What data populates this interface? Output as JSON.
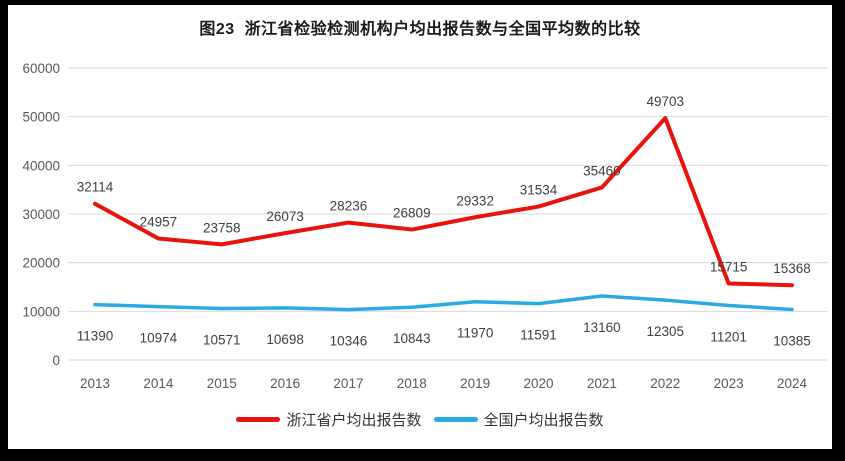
{
  "title": "图23  浙江省检验检测机构户均出报告数与全国平均数的比较",
  "frame": {
    "border_color": "#000000",
    "background": "#ffffff"
  },
  "chart_data": {
    "type": "line",
    "title": "图23  浙江省检验检测机构户均出报告数与全国平均数的比较",
    "categories": [
      "2013",
      "2014",
      "2015",
      "2016",
      "2017",
      "2018",
      "2019",
      "2020",
      "2021",
      "2022",
      "2023",
      "2024"
    ],
    "series": [
      {
        "name": "浙江省户均出报告数",
        "color": "#e8130c",
        "values": [
          32114,
          24957,
          23758,
          26073,
          28236,
          26809,
          29332,
          31534,
          35460,
          49703,
          15715,
          15368
        ]
      },
      {
        "name": "全国户均出报告数",
        "color": "#29abe2",
        "values": [
          11390,
          10974,
          10571,
          10698,
          10346,
          10843,
          11970,
          11591,
          13160,
          12305,
          11201,
          10385
        ]
      }
    ],
    "xlabel": "",
    "ylabel": "",
    "ylim": [
      0,
      60000
    ],
    "ytick_step": 10000,
    "yticks": [
      "0",
      "10000",
      "20000",
      "30000",
      "40000",
      "50000",
      "60000"
    ],
    "grid": "horizontal",
    "legend_position": "bottom",
    "gridline_color": "#d9d9d9",
    "axis_label_color": "#595959",
    "data_label_color": "#3f3f3f"
  }
}
